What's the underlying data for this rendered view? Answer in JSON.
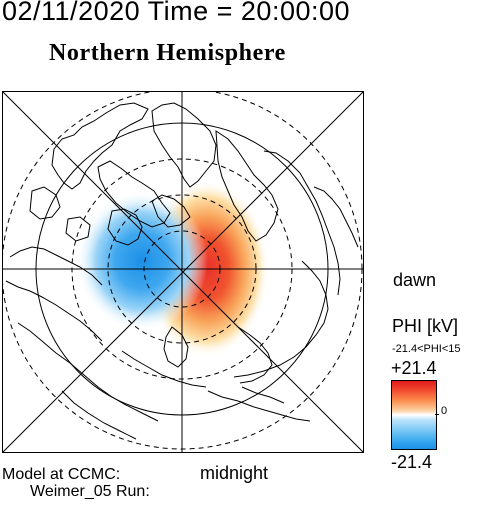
{
  "header": {
    "datetime": "02/11/2020 Time = 20:00:00",
    "hemisphere": "Northern Hemisphere"
  },
  "map": {
    "local_time_labels": {
      "dawn": "dawn",
      "midnight": "midnight"
    }
  },
  "colorbar": {
    "title": "PHI [kV]",
    "range_note": "-21.4<PHI<15",
    "max": "+21.4",
    "min": "-21.4",
    "zero": "0",
    "colors": {
      "high": "#e11a1d",
      "mid": "#ffffff",
      "low": "#1a90e8"
    }
  },
  "footer": {
    "model_line1": "Model at CCMC:",
    "model_line2": "Weimer_05 Run:"
  }
}
